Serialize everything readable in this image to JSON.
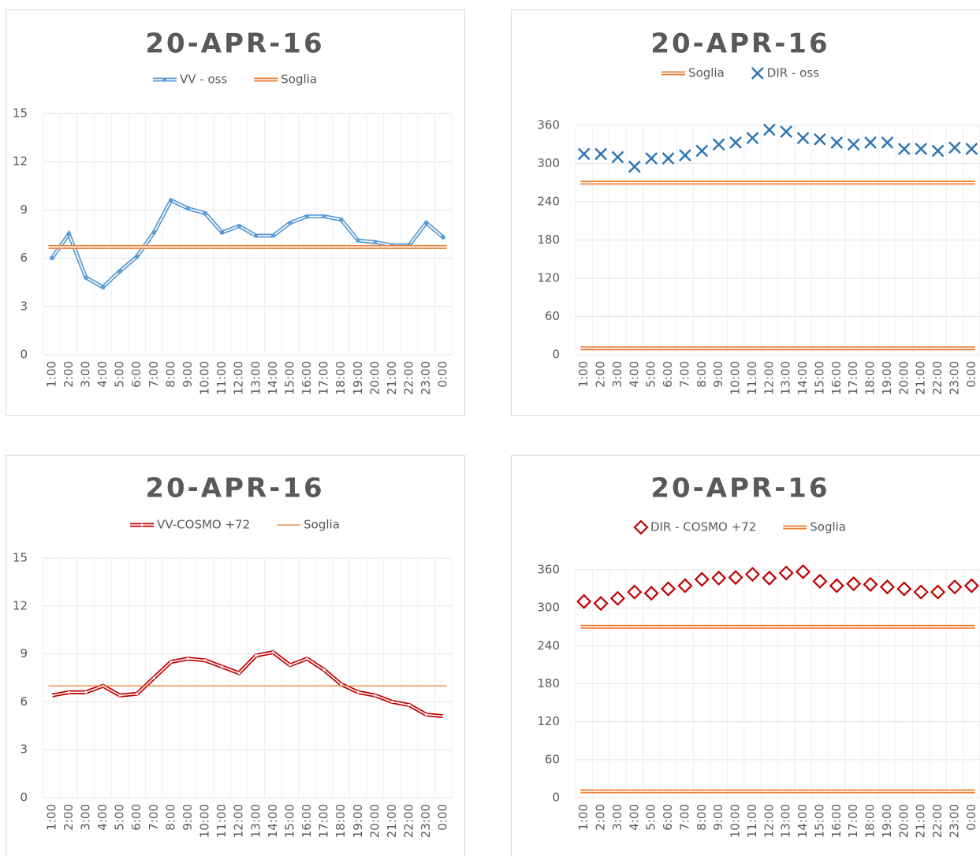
{
  "chart_data": [
    {
      "type": "line",
      "title": "20-APR-16",
      "categories": [
        "1:00",
        "2:00",
        "3:00",
        "4:00",
        "5:00",
        "6:00",
        "7:00",
        "8:00",
        "9:00",
        "10:00",
        "11:00",
        "12:00",
        "13:00",
        "14:00",
        "15:00",
        "16:00",
        "17:00",
        "18:00",
        "19:00",
        "20:00",
        "21:00",
        "22:00",
        "23:00",
        "0:00"
      ],
      "series": [
        {
          "name": "VV - oss",
          "color": "#5b9bd5",
          "style": "double",
          "marker": "square",
          "values": [
            6.0,
            7.5,
            4.8,
            4.2,
            5.2,
            6.1,
            7.6,
            9.6,
            9.1,
            8.8,
            7.6,
            8.0,
            7.4,
            7.4,
            8.2,
            8.6,
            8.6,
            8.4,
            7.1,
            7.0,
            6.8,
            6.8,
            8.2,
            7.3
          ]
        },
        {
          "name": "Soglia",
          "color": "#ed7d31",
          "style": "double",
          "hlines": [
            6.7
          ]
        }
      ],
      "ylim": [
        0,
        15
      ],
      "yticks": [
        0,
        3,
        6,
        9,
        12,
        15
      ],
      "grid": true
    },
    {
      "type": "scatter",
      "title": "20-APR-16",
      "categories": [
        "1:00",
        "2:00",
        "3:00",
        "4:00",
        "5:00",
        "6:00",
        "7:00",
        "8:00",
        "9:00",
        "10:00",
        "11:00",
        "12:00",
        "13:00",
        "14:00",
        "15:00",
        "16:00",
        "17:00",
        "18:00",
        "19:00",
        "20:00",
        "21:00",
        "22:00",
        "23:00",
        "0:00"
      ],
      "series": [
        {
          "name": "Soglia",
          "color": "#ed7d31",
          "style": "double",
          "hlines": [
            270,
            10
          ]
        },
        {
          "name": "DIR - oss",
          "color": "#2e75b6",
          "marker": "x",
          "values": [
            315,
            315,
            310,
            295,
            308,
            308,
            313,
            320,
            330,
            333,
            340,
            353,
            350,
            340,
            338,
            333,
            330,
            333,
            333,
            323,
            323,
            320,
            325,
            323
          ]
        }
      ],
      "ylim": [
        0,
        360
      ],
      "yticks": [
        0,
        60,
        120,
        180,
        240,
        300,
        360
      ],
      "grid": true
    },
    {
      "type": "line",
      "title": "20-APR-16",
      "categories": [
        "1:00",
        "2:00",
        "3:00",
        "4:00",
        "5:00",
        "6:00",
        "7:00",
        "8:00",
        "9:00",
        "10:00",
        "11:00",
        "12:00",
        "13:00",
        "14:00",
        "15:00",
        "16:00",
        "17:00",
        "18:00",
        "19:00",
        "20:00",
        "21:00",
        "22:00",
        "23:00",
        "0:00"
      ],
      "series": [
        {
          "name": "VV-COSMO +72",
          "color": "#c00000",
          "style": "double",
          "marker": "dot",
          "values": [
            6.4,
            6.6,
            6.6,
            7.0,
            6.4,
            6.5,
            7.5,
            8.5,
            8.7,
            8.6,
            8.2,
            7.8,
            8.9,
            9.1,
            8.3,
            8.7,
            8.0,
            7.1,
            6.6,
            6.4,
            6.0,
            5.8,
            5.2,
            5.1
          ]
        },
        {
          "name": "Soglia",
          "color": "#ed7d31",
          "style": "single",
          "hlines": [
            7.0
          ]
        }
      ],
      "ylim": [
        0,
        15
      ],
      "yticks": [
        0,
        3,
        6,
        9,
        12,
        15
      ],
      "grid": true
    },
    {
      "type": "scatter",
      "title": "20-APR-16",
      "categories": [
        "1:00",
        "2:00",
        "3:00",
        "4:00",
        "5:00",
        "6:00",
        "7:00",
        "8:00",
        "9:00",
        "10:00",
        "11:00",
        "12:00",
        "13:00",
        "14:00",
        "15:00",
        "16:00",
        "17:00",
        "18:00",
        "19:00",
        "20:00",
        "21:00",
        "22:00",
        "23:00",
        "0:00"
      ],
      "series": [
        {
          "name": "DIR - COSMO +72",
          "color": "#c00000",
          "marker": "diamond",
          "values": [
            310,
            307,
            315,
            325,
            323,
            330,
            335,
            345,
            347,
            348,
            353,
            347,
            355,
            357,
            342,
            335,
            338,
            337,
            333,
            330,
            325,
            325,
            333,
            335
          ]
        },
        {
          "name": "Soglia",
          "color": "#ed7d31",
          "style": "double",
          "hlines": [
            270,
            10
          ]
        }
      ],
      "ylim": [
        0,
        360
      ],
      "yticks": [
        0,
        60,
        120,
        180,
        240,
        300,
        360
      ],
      "grid": true
    }
  ]
}
